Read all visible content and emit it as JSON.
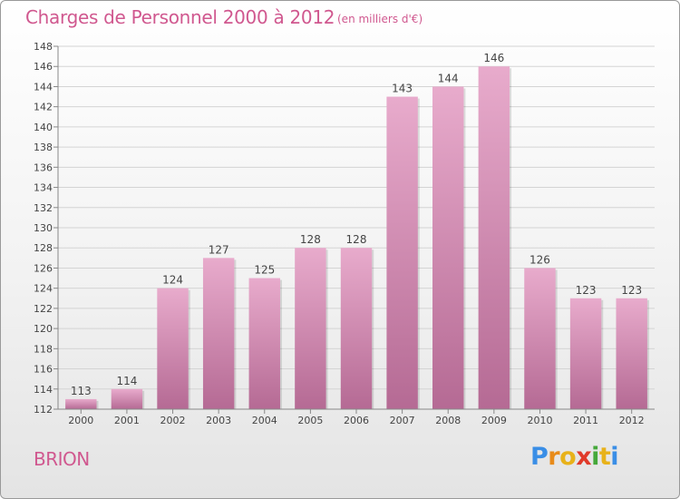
{
  "header": {
    "title": "Charges de Personnel 2000 à 2012",
    "unit": "(en milliers d'€)"
  },
  "footer": {
    "place": "BRION",
    "brand": [
      "P",
      "r",
      "o",
      "x",
      "i",
      "t",
      "i"
    ],
    "brand_colors": [
      "#3a8ee6",
      "#e88b1a",
      "#e8b21a",
      "#e03a2a",
      "#45a83a",
      "#e8b21a",
      "#3a8ee6"
    ]
  },
  "colors": {
    "bar_top": "#e8abcc",
    "bar_bottom": "#b56a94",
    "text": "#d0588f"
  },
  "chart_data": {
    "type": "bar",
    "categories": [
      "2000",
      "2001",
      "2002",
      "2003",
      "2004",
      "2005",
      "2006",
      "2007",
      "2008",
      "2009",
      "2010",
      "2011",
      "2012"
    ],
    "values": [
      113,
      114,
      124,
      127,
      125,
      128,
      128,
      143,
      144,
      146,
      126,
      123,
      123
    ],
    "ylim": [
      112,
      148
    ],
    "yticks": [
      112,
      114,
      116,
      118,
      120,
      122,
      124,
      126,
      128,
      130,
      132,
      134,
      136,
      138,
      140,
      142,
      144,
      146,
      148
    ],
    "title": "Charges de Personnel 2000 à 2012",
    "grid": true
  }
}
